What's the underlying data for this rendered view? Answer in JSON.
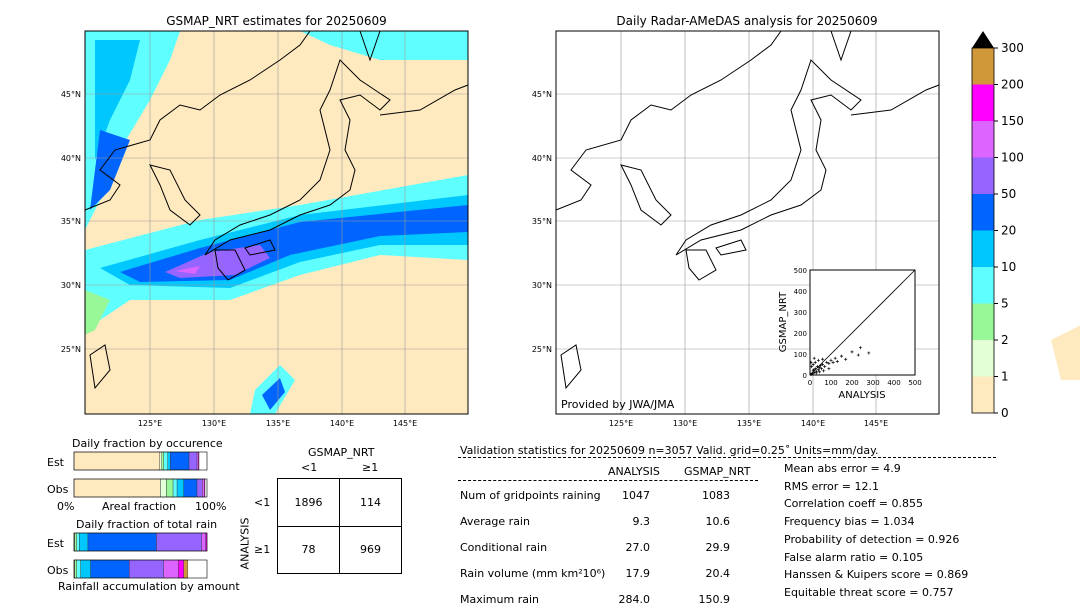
{
  "colors": {
    "c0": "#ffeac0",
    "c1": "#e2ffd6",
    "c2": "#98f898",
    "c3": "#60ffff",
    "c4": "#00c8ff",
    "c5": "#0064ff",
    "c6": "#9664ff",
    "c7": "#dc64ff",
    "c8": "#ff00ff",
    "c9": "#d09838"
  },
  "left_map": {
    "title": "GSMAP_NRT estimates for 20250609"
  },
  "right_map": {
    "title": "Daily Radar-AMeDAS analysis for 20250609",
    "credit": "Provided by JWA/JMA"
  },
  "lat_ticks": [
    "45°N",
    "40°N",
    "35°N",
    "30°N",
    "25°N"
  ],
  "lon_ticks": [
    "125°E",
    "130°E",
    "135°E",
    "140°E",
    "145°E"
  ],
  "colorbar": {
    "ticks": [
      "0",
      "1",
      "2",
      "5",
      "10",
      "20",
      "50",
      "100",
      "150",
      "200",
      "300"
    ],
    "extend": "max"
  },
  "scatter": {
    "xlabel": "ANALYSIS",
    "ylabel": "GSMAP_NRT",
    "ticks": [
      "0",
      "100",
      "200",
      "300",
      "400",
      "500"
    ],
    "range": [
      0,
      500
    ],
    "points": [
      [
        5,
        3
      ],
      [
        10,
        8
      ],
      [
        15,
        20
      ],
      [
        20,
        12
      ],
      [
        25,
        30
      ],
      [
        30,
        18
      ],
      [
        35,
        40
      ],
      [
        40,
        25
      ],
      [
        45,
        35
      ],
      [
        50,
        45
      ],
      [
        55,
        30
      ],
      [
        60,
        50
      ],
      [
        70,
        40
      ],
      [
        80,
        60
      ],
      [
        90,
        55
      ],
      [
        100,
        70
      ],
      [
        110,
        60
      ],
      [
        120,
        80
      ],
      [
        130,
        65
      ],
      [
        150,
        90
      ],
      [
        170,
        75
      ],
      [
        200,
        110
      ],
      [
        230,
        95
      ],
      [
        240,
        130
      ],
      [
        280,
        105
      ],
      [
        15,
        50
      ],
      [
        25,
        60
      ],
      [
        40,
        70
      ],
      [
        8,
        40
      ],
      [
        60,
        75
      ],
      [
        12,
        5
      ],
      [
        18,
        25
      ],
      [
        30,
        10
      ],
      [
        65,
        20
      ],
      [
        90,
        30
      ],
      [
        5,
        60
      ],
      [
        20,
        80
      ],
      [
        45,
        15
      ]
    ]
  },
  "occurrence": {
    "title": "Daily fraction by occurence",
    "rows": [
      "Est",
      "Obs"
    ],
    "xlabel": "Areal fraction",
    "x0": "0%",
    "x1": "100%",
    "est": [
      64.5,
      1.5,
      1.5,
      3,
      2,
      14,
      6,
      1,
      0.5
    ],
    "obs": [
      65,
      4.5,
      5,
      3,
      5,
      10,
      4,
      1.5,
      0.5
    ]
  },
  "total_rain": {
    "title": "Daily fraction of total rain",
    "rows": [
      "Est",
      "Obs"
    ],
    "xlabel": "Rainfall accumulation by amount",
    "est": [
      0.5,
      1.5,
      2,
      6.5,
      51.5,
      34,
      3,
      1
    ],
    "obs": [
      0.5,
      1.5,
      3,
      7.5,
      29,
      26,
      11,
      4,
      3
    ]
  },
  "contingency": {
    "col_title": "GSMAP_NRT",
    "row_title": "ANALYSIS",
    "cols": [
      "<1",
      "≥1"
    ],
    "rows": [
      "<1",
      "≥1"
    ],
    "cells": [
      [
        "1896",
        "114"
      ],
      [
        "78",
        "969"
      ]
    ]
  },
  "stats": {
    "header": "Validation statistics for 20250609  n=3057 Valid. grid=0.25˚ Units=mm/day.",
    "col1": "ANALYSIS",
    "col2": "GSMAP_NRT",
    "rows": [
      [
        "Num of gridpoints raining",
        "1047",
        "1083"
      ],
      [
        "Average rain",
        "9.3",
        "10.6"
      ],
      [
        "Conditional rain",
        "27.0",
        "29.9"
      ],
      [
        "Rain volume (mm km²10⁶)",
        "17.9",
        "20.4"
      ],
      [
        "Maximum rain",
        "284.0",
        "150.9"
      ]
    ],
    "scores": [
      "Mean abs error =    4.9",
      "RMS error =   12.1",
      "Correlation coeff =  0.855",
      "Frequency bias =  1.034",
      "Probability of detection =  0.926",
      "False alarm ratio =  0.105",
      "Hanssen & Kuipers score =  0.869",
      "Equitable threat score =  0.757"
    ]
  }
}
